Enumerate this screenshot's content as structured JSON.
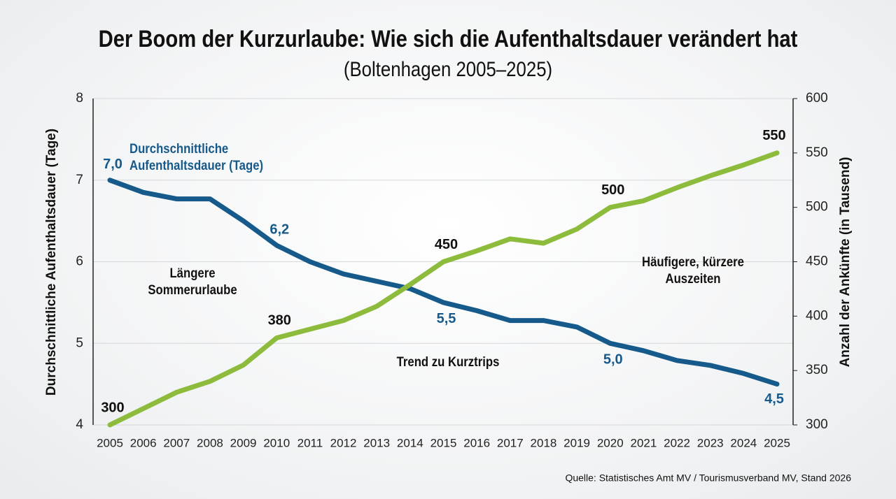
{
  "chart_data": {
    "type": "line",
    "title": "Der Boom der Kurzurlaube: Wie sich die Aufenthaltsdauer verändert hat",
    "subtitle": "(Boltenhagen 2005–2025)",
    "y_label": "Durchschnittliche Aufenthaltsdauer (Tage)",
    "y2_label": "Anzahl der Ankünfte (in Tausend)",
    "source": "Quelle: Statistisches Amt MV / Tourismusverband MV, Stand 2026",
    "categories": [
      "2005",
      "2006",
      "2007",
      "2008",
      "2009",
      "2010",
      "2011",
      "2012",
      "2013",
      "2014",
      "2015",
      "2016",
      "2017",
      "2018",
      "2019",
      "2020",
      "2021",
      "2022",
      "2023",
      "2024",
      "2025"
    ],
    "ylim": [
      4,
      8
    ],
    "yticks": [
      4,
      5,
      6,
      7,
      8
    ],
    "y2lim": [
      300,
      600
    ],
    "y2ticks": [
      300,
      350,
      400,
      450,
      500,
      550,
      600
    ],
    "grid": true,
    "series": [
      {
        "name": "Durchschnittliche Aufenthaltsdauer (Tage)",
        "color": "#155a8a",
        "values": [
          7.0,
          6.85,
          6.77,
          6.77,
          6.5,
          6.2,
          6.0,
          5.85,
          5.76,
          5.67,
          5.5,
          5.4,
          5.28,
          5.28,
          5.2,
          5.0,
          4.91,
          4.79,
          4.73,
          4.63,
          4.5
        ],
        "value_labels": [
          "7,0",
          null,
          null,
          null,
          null,
          "6,2",
          null,
          null,
          null,
          null,
          "5,5",
          null,
          null,
          null,
          null,
          "5,0",
          null,
          null,
          null,
          null,
          "4,5"
        ]
      },
      {
        "color": "#8dbb3c",
        "axis": "y2",
        "values": [
          300,
          315,
          330,
          340,
          355,
          380,
          388,
          396,
          409,
          429,
          450,
          460,
          471,
          467,
          480,
          500,
          506,
          518,
          529,
          539,
          550
        ],
        "value_labels": [
          "300",
          null,
          null,
          null,
          null,
          "380",
          null,
          null,
          null,
          null,
          "450",
          null,
          null,
          null,
          null,
          "500",
          null,
          null,
          null,
          null,
          "550"
        ]
      }
    ],
    "annotations": [
      "Längere Sommerurlaube",
      "Trend zu Kurztrips",
      "Häufigere, kürzere Auszeiten"
    ]
  }
}
